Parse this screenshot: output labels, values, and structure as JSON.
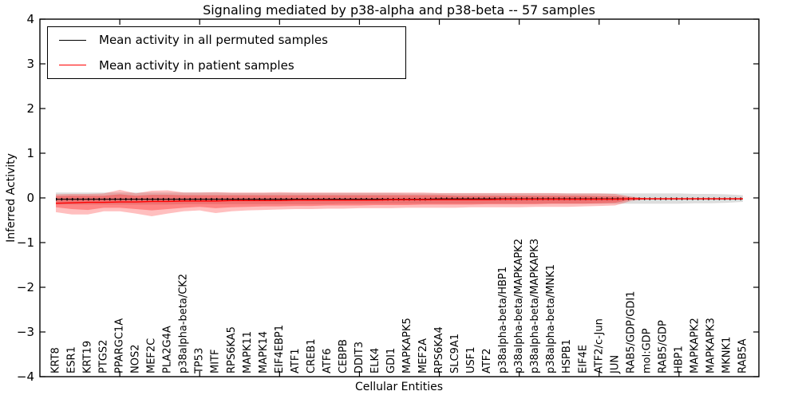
{
  "title": "Signaling mediated by p38-alpha and p38-beta -- 57 samples",
  "legend": {
    "items": [
      {
        "label": "Mean activity in all permuted samples",
        "color": "#000000"
      },
      {
        "label": "Mean activity in patient samples",
        "color": "#ff0000"
      }
    ]
  },
  "colors": {
    "background": "#ffffff",
    "frame": "#000000",
    "permuted_line": "#000000",
    "patient_line": "#ff0000",
    "permuted_band": "#aaaaaa",
    "patient_band": "#ff0000"
  },
  "chart_data": {
    "type": "line",
    "title": "Signaling mediated by p38-alpha and p38-beta -- 57 samples",
    "xlabel": "Cellular Entities",
    "ylabel": "Inferred Activity",
    "ylim": [
      -4,
      4
    ],
    "yticks": [
      4,
      3,
      2,
      1,
      0,
      -1,
      -2,
      -3,
      -4
    ],
    "major_x_tick_indices": [
      4,
      9,
      14,
      19,
      24,
      29,
      34,
      39
    ],
    "grid": false,
    "legend_position": "upper left",
    "x_labels": [
      "KRT8",
      "ESR1",
      "KRT19",
      "PTGS2",
      "PPARGC1A",
      "NOS2",
      "MEF2C",
      "PLA2G4A",
      "p38alpha-beta/CK2",
      "TP53",
      "MITF",
      "RPS6KA5",
      "MAPK11",
      "MAPK14",
      "EIF4EBP1",
      "ATF1",
      "CREB1",
      "ATF6",
      "CEBPB",
      "DDIT3",
      "ELK4",
      "GDI1",
      "MAPKAPK5",
      "MEF2A",
      "RPS6KA4",
      "SLC9A1",
      "USF1",
      "ATF2",
      "p38alpha-beta/HBP1",
      "p38alpha-beta/MAPKAPK2",
      "p38alpha-beta/MAPKAPK3",
      "p38alpha-beta/MNK1",
      "HSPB1",
      "EIF4E",
      "ATF2/c-Jun",
      "JUN",
      "RAB5/GDP/GDI1",
      "mol:GDP",
      "RAB5/GDP",
      "HBP1",
      "MAPKAPK2",
      "MAPKAPK3",
      "MKNK1",
      "RAB5A"
    ],
    "series": [
      {
        "name": "Mean activity in all permuted samples",
        "color": "#000000",
        "values": [
          -0.03,
          -0.03,
          -0.03,
          -0.03,
          -0.03,
          -0.03,
          -0.03,
          -0.03,
          -0.03,
          -0.03,
          -0.03,
          -0.03,
          -0.03,
          -0.03,
          -0.03,
          -0.03,
          -0.03,
          -0.03,
          -0.03,
          -0.03,
          -0.03,
          -0.03,
          -0.03,
          -0.03,
          -0.02,
          -0.02,
          -0.02,
          -0.02,
          -0.02,
          -0.02,
          -0.02,
          -0.02,
          -0.02,
          -0.02,
          -0.02,
          -0.02,
          -0.02,
          -0.02,
          -0.02,
          -0.02,
          -0.02,
          -0.02,
          -0.02,
          -0.02
        ]
      },
      {
        "name": "Mean activity in patient samples",
        "color": "#ff0000",
        "values": [
          -0.12,
          -0.11,
          -0.1,
          -0.1,
          -0.09,
          -0.09,
          -0.08,
          -0.08,
          -0.07,
          -0.07,
          -0.07,
          -0.06,
          -0.06,
          -0.06,
          -0.06,
          -0.05,
          -0.05,
          -0.05,
          -0.05,
          -0.05,
          -0.05,
          -0.04,
          -0.04,
          -0.04,
          -0.04,
          -0.04,
          -0.04,
          -0.04,
          -0.03,
          -0.03,
          -0.03,
          -0.03,
          -0.03,
          -0.03,
          -0.03,
          -0.03,
          -0.02,
          -0.02,
          -0.02,
          -0.02,
          -0.02,
          -0.02,
          -0.02,
          -0.02
        ]
      }
    ],
    "bands": [
      {
        "name": "permuted-std-band",
        "color": "#aaaaaa",
        "opacity": 0.4,
        "top": [
          0.12,
          0.12,
          0.12,
          0.12,
          0.12,
          0.12,
          0.12,
          0.12,
          0.12,
          0.12,
          0.12,
          0.11,
          0.11,
          0.11,
          0.11,
          0.11,
          0.11,
          0.11,
          0.11,
          0.11,
          0.11,
          0.11,
          0.1,
          0.1,
          0.1,
          0.1,
          0.1,
          0.1,
          0.1,
          0.1,
          0.1,
          0.1,
          0.1,
          0.1,
          0.1,
          0.1,
          0.1,
          0.1,
          0.1,
          0.1,
          0.09,
          0.09,
          0.08,
          0.06
        ],
        "bottom": [
          -0.15,
          -0.15,
          -0.15,
          -0.15,
          -0.15,
          -0.15,
          -0.15,
          -0.15,
          -0.14,
          -0.14,
          -0.14,
          -0.14,
          -0.14,
          -0.14,
          -0.14,
          -0.14,
          -0.14,
          -0.14,
          -0.13,
          -0.13,
          -0.13,
          -0.13,
          -0.13,
          -0.13,
          -0.13,
          -0.13,
          -0.13,
          -0.13,
          -0.13,
          -0.13,
          -0.13,
          -0.13,
          -0.13,
          -0.13,
          -0.13,
          -0.13,
          -0.13,
          -0.13,
          -0.13,
          -0.13,
          -0.12,
          -0.12,
          -0.11,
          -0.09
        ]
      },
      {
        "name": "patient-std-outer-band",
        "color": "#ff0000",
        "opacity": 0.25,
        "top": [
          0.08,
          0.09,
          0.09,
          0.1,
          0.18,
          0.1,
          0.16,
          0.17,
          0.12,
          0.12,
          0.13,
          0.12,
          0.12,
          0.12,
          0.13,
          0.12,
          0.12,
          0.12,
          0.12,
          0.12,
          0.12,
          0.12,
          0.12,
          0.12,
          0.11,
          0.11,
          0.11,
          0.11,
          0.11,
          0.11,
          0.11,
          0.11,
          0.1,
          0.1,
          0.1,
          0.09,
          0.03,
          -0.01,
          -0.01,
          -0.01,
          -0.01,
          -0.01,
          -0.01,
          -0.01
        ],
        "bottom": [
          -0.32,
          -0.37,
          -0.37,
          -0.3,
          -0.3,
          -0.35,
          -0.41,
          -0.35,
          -0.3,
          -0.28,
          -0.34,
          -0.3,
          -0.28,
          -0.27,
          -0.26,
          -0.25,
          -0.25,
          -0.24,
          -0.24,
          -0.23,
          -0.23,
          -0.23,
          -0.22,
          -0.22,
          -0.22,
          -0.22,
          -0.21,
          -0.21,
          -0.21,
          -0.21,
          -0.2,
          -0.2,
          -0.2,
          -0.19,
          -0.18,
          -0.17,
          -0.07,
          -0.03,
          -0.03,
          -0.03,
          -0.03,
          -0.03,
          -0.03,
          -0.03
        ]
      },
      {
        "name": "patient-std-inner-band",
        "color": "#ff0000",
        "opacity": 0.3,
        "top": [
          0.04,
          0.05,
          0.05,
          0.05,
          0.08,
          0.05,
          0.07,
          0.07,
          0.06,
          0.06,
          0.06,
          0.06,
          0.06,
          0.06,
          0.06,
          0.06,
          0.06,
          0.06,
          0.06,
          0.06,
          0.06,
          0.06,
          0.06,
          0.06,
          0.06,
          0.05,
          0.05,
          0.05,
          0.05,
          0.05,
          0.05,
          0.05,
          0.05,
          0.05,
          0.04,
          0.04,
          0.01,
          -0.01,
          -0.01,
          -0.01,
          -0.01,
          -0.01,
          -0.01,
          -0.01
        ],
        "bottom": [
          -0.21,
          -0.25,
          -0.27,
          -0.22,
          -0.22,
          -0.25,
          -0.28,
          -0.25,
          -0.22,
          -0.2,
          -0.23,
          -0.21,
          -0.2,
          -0.19,
          -0.19,
          -0.18,
          -0.18,
          -0.17,
          -0.17,
          -0.17,
          -0.16,
          -0.16,
          -0.16,
          -0.15,
          -0.15,
          -0.15,
          -0.15,
          -0.14,
          -0.14,
          -0.14,
          -0.14,
          -0.13,
          -0.13,
          -0.13,
          -0.12,
          -0.11,
          -0.04,
          -0.03,
          -0.03,
          -0.03,
          -0.03,
          -0.03,
          -0.03,
          -0.03
        ]
      }
    ]
  }
}
